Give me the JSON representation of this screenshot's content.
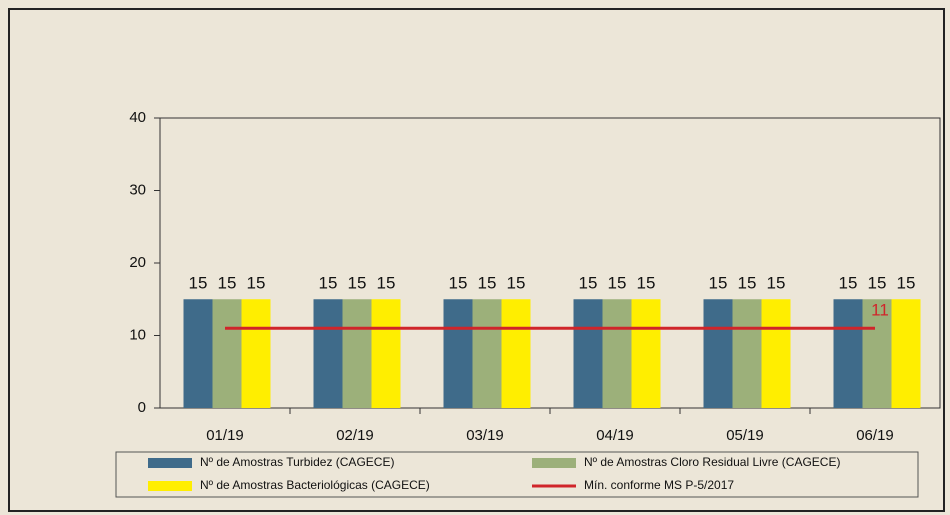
{
  "chart_data": {
    "type": "bar",
    "categories": [
      "01/19",
      "02/19",
      "03/19",
      "04/19",
      "05/19",
      "06/19"
    ],
    "series": [
      {
        "name": "Nº de Amostras Turbidez (CAGECE)",
        "color": "#3f6b8a",
        "values": [
          15,
          15,
          15,
          15,
          15,
          15
        ]
      },
      {
        "name": "Nº de Amostras Cloro Residual Livre (CAGECE)",
        "color": "#9cb07a",
        "values": [
          15,
          15,
          15,
          15,
          15,
          15
        ]
      },
      {
        "name": "Nº de Amostras Bacteriológicas (CAGECE)",
        "color": "#ffee00",
        "values": [
          15,
          15,
          15,
          15,
          15,
          15
        ]
      },
      {
        "name": "Mín. conforme MS  P-5/2017",
        "color": "#d0252a",
        "type": "line",
        "values": [
          11,
          11,
          11,
          11,
          11,
          11
        ]
      }
    ],
    "ylim": [
      0,
      40
    ],
    "yticks": [
      0,
      10,
      20,
      30,
      40
    ]
  }
}
